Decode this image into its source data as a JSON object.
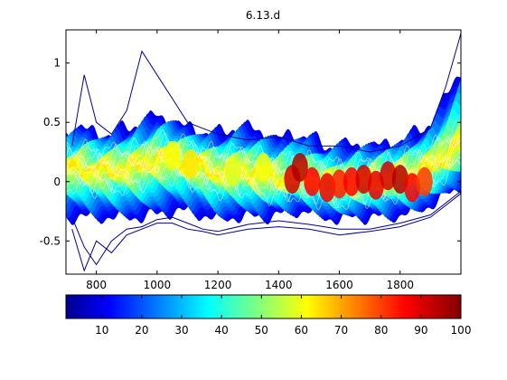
{
  "chart_data": {
    "type": "line",
    "title": "6.13.d",
    "xlabel": "",
    "ylabel": "",
    "xlim": [
      700,
      2000
    ],
    "ylim": [
      -0.78,
      1.28
    ],
    "x_ticks": [
      800,
      1000,
      1200,
      1400,
      1600,
      1800
    ],
    "y_ticks": [
      -0.5,
      0,
      0.5,
      1
    ],
    "grid": false,
    "colorbar": {
      "orientation": "horizontal",
      "range": [
        1,
        100
      ],
      "ticks": [
        10,
        20,
        30,
        40,
        50,
        60,
        70,
        80,
        90,
        100
      ],
      "colormap": "jet"
    },
    "envelope": {
      "x": [
        700,
        750,
        800,
        850,
        900,
        950,
        1000,
        1050,
        1100,
        1150,
        1200,
        1250,
        1300,
        1350,
        1400,
        1450,
        1500,
        1550,
        1600,
        1650,
        1700,
        1750,
        1800,
        1850,
        1900,
        1950,
        2000
      ],
      "center": [
        0.12,
        0.12,
        0.1,
        0.1,
        0.12,
        0.14,
        0.2,
        0.2,
        0.16,
        0.12,
        0.08,
        0.1,
        0.08,
        0.05,
        0.03,
        0.05,
        0.02,
        0.0,
        -0.02,
        0.0,
        0.02,
        0.03,
        0.05,
        0.08,
        0.12,
        0.22,
        0.32
      ],
      "upper": [
        0.4,
        0.45,
        0.4,
        0.4,
        0.45,
        0.5,
        0.55,
        0.5,
        0.45,
        0.42,
        0.4,
        0.45,
        0.45,
        0.4,
        0.35,
        0.4,
        0.38,
        0.3,
        0.3,
        0.3,
        0.3,
        0.3,
        0.35,
        0.4,
        0.5,
        0.7,
        0.95
      ],
      "lower": [
        -0.3,
        -0.3,
        -0.3,
        -0.3,
        -0.3,
        -0.3,
        -0.28,
        -0.25,
        -0.25,
        -0.28,
        -0.32,
        -0.3,
        -0.3,
        -0.3,
        -0.28,
        -0.25,
        -0.25,
        -0.3,
        -0.32,
        -0.3,
        -0.3,
        -0.3,
        -0.28,
        -0.25,
        -0.2,
        -0.12,
        -0.05
      ]
    },
    "hotspots": [
      {
        "x": 1445,
        "y": 0.02,
        "value": 92
      },
      {
        "x": 1470,
        "y": 0.12,
        "value": 95
      },
      {
        "x": 1510,
        "y": 0.0,
        "value": 88
      },
      {
        "x": 1560,
        "y": -0.05,
        "value": 90
      },
      {
        "x": 1600,
        "y": -0.02,
        "value": 85
      },
      {
        "x": 1640,
        "y": 0.0,
        "value": 88
      },
      {
        "x": 1680,
        "y": 0.02,
        "value": 92
      },
      {
        "x": 1720,
        "y": -0.03,
        "value": 90
      },
      {
        "x": 1760,
        "y": 0.05,
        "value": 92
      },
      {
        "x": 1800,
        "y": 0.02,
        "value": 95
      },
      {
        "x": 1840,
        "y": -0.05,
        "value": 88
      },
      {
        "x": 1880,
        "y": 0.0,
        "value": 82
      },
      {
        "x": 1050,
        "y": 0.22,
        "value": 62
      },
      {
        "x": 1110,
        "y": 0.15,
        "value": 65
      },
      {
        "x": 1250,
        "y": 0.08,
        "value": 60
      },
      {
        "x": 1350,
        "y": 0.12,
        "value": 62
      }
    ],
    "outlier_traces": [
      {
        "x": [
          720,
          760,
          800,
          850,
          900,
          950,
          1000,
          1050,
          1100,
          1150,
          1200,
          1300,
          1400,
          1500,
          1600,
          1700,
          1800,
          1900,
          1950,
          2000
        ],
        "y": [
          0.3,
          0.9,
          0.5,
          0.4,
          0.6,
          1.1,
          0.9,
          0.7,
          0.5,
          0.45,
          0.4,
          0.35,
          0.38,
          0.3,
          0.3,
          0.25,
          0.3,
          0.45,
          0.8,
          1.25
        ]
      },
      {
        "x": [
          720,
          760,
          800,
          850,
          900,
          950,
          1000,
          1050,
          1100,
          1150,
          1200,
          1300,
          1400,
          1500,
          1600,
          1700,
          1800,
          1900,
          1950,
          2000
        ],
        "y": [
          -0.4,
          -0.75,
          -0.5,
          -0.6,
          -0.45,
          -0.4,
          -0.35,
          -0.35,
          -0.4,
          -0.42,
          -0.45,
          -0.4,
          -0.38,
          -0.4,
          -0.45,
          -0.42,
          -0.38,
          -0.3,
          -0.2,
          -0.1
        ]
      },
      {
        "x": [
          720,
          760,
          800,
          850,
          900,
          950,
          1000,
          1050,
          1100,
          1150,
          1200,
          1300,
          1400,
          1500,
          1600,
          1700,
          1800,
          1900,
          1950,
          2000
        ],
        "y": [
          -0.3,
          -0.55,
          -0.7,
          -0.5,
          -0.4,
          -0.38,
          -0.32,
          -0.3,
          -0.35,
          -0.4,
          -0.42,
          -0.36,
          -0.33,
          -0.36,
          -0.4,
          -0.4,
          -0.35,
          -0.28,
          -0.18,
          -0.08
        ]
      }
    ]
  }
}
